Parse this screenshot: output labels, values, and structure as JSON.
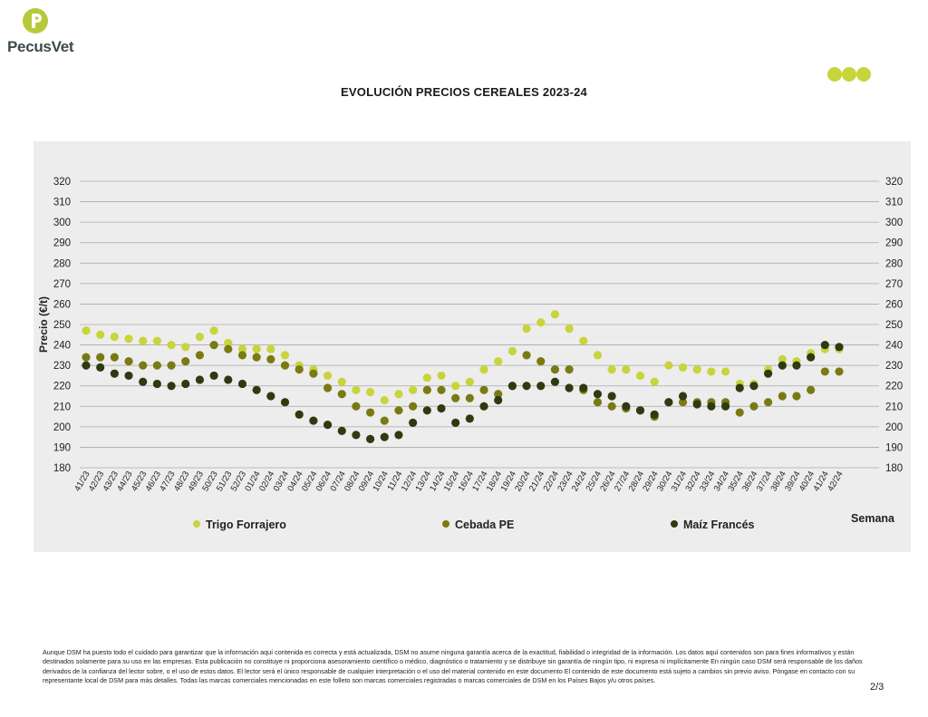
{
  "brand": {
    "name": "PecusVet",
    "logo_icon": "pecusvet-logo-icon"
  },
  "header": {
    "title": "EVOLUCIÓN PRECIOS CEREALES 2023-24"
  },
  "chart_data": {
    "type": "scatter",
    "title": "EVOLUCIÓN PRECIOS CEREALES 2023-24",
    "ylabel": "Precio (€/t)",
    "xlabel": "Semana",
    "ylim": [
      180,
      320
    ],
    "yticks": [
      180,
      190,
      200,
      210,
      220,
      230,
      240,
      250,
      260,
      270,
      280,
      290,
      300,
      310,
      320
    ],
    "grid": true,
    "legend": "bottom",
    "categories": [
      "41/23",
      "42/23",
      "43/23",
      "44/23",
      "45/23",
      "46/23",
      "47/23",
      "48/23",
      "49/23",
      "50/23",
      "51/23",
      "52/23",
      "01/24",
      "02/24",
      "03/24",
      "04/24",
      "05/24",
      "06/24",
      "07/24",
      "08/24",
      "09/24",
      "10/24",
      "11/24",
      "12/24",
      "13/24",
      "14/24",
      "15/24",
      "16/24",
      "17/24",
      "18/24",
      "19/24",
      "20/24",
      "21/24",
      "22/24",
      "23/24",
      "24/24",
      "25/24",
      "26/24",
      "27/24",
      "28/24",
      "29/24",
      "30/24",
      "31/24",
      "32/24",
      "33/24",
      "34/24",
      "35/24",
      "36/24",
      "37/24",
      "38/24",
      "39/24",
      "40/24",
      "41/24",
      "42/24"
    ],
    "series": [
      {
        "name": "Trigo Forrajero",
        "color": "#c8d43c",
        "values": [
          247,
          245,
          244,
          243,
          242,
          242,
          240,
          239,
          244,
          247,
          241,
          238,
          238,
          238,
          235,
          230,
          228,
          225,
          222,
          218,
          217,
          213,
          216,
          218,
          224,
          225,
          220,
          222,
          228,
          232,
          237,
          248,
          251,
          255,
          248,
          242,
          235,
          228,
          228,
          225,
          222,
          230,
          229,
          228,
          227,
          227,
          221,
          221,
          228,
          233,
          232,
          236,
          238,
          238
        ]
      },
      {
        "name": "Cebada PE",
        "color": "#7a7a14",
        "values": [
          234,
          234,
          234,
          232,
          230,
          230,
          230,
          232,
          235,
          240,
          238,
          235,
          234,
          233,
          230,
          228,
          226,
          219,
          216,
          210,
          207,
          203,
          208,
          210,
          218,
          218,
          214,
          214,
          218,
          216,
          220,
          235,
          232,
          228,
          228,
          218,
          212,
          210,
          209,
          208,
          205,
          212,
          212,
          212,
          212,
          212,
          207,
          210,
          212,
          215,
          215,
          218,
          227,
          227
        ]
      },
      {
        "name": "Maíz Francés",
        "color": "#2e3b10",
        "values": [
          230,
          229,
          226,
          225,
          222,
          221,
          220,
          221,
          223,
          225,
          223,
          221,
          218,
          215,
          212,
          206,
          203,
          201,
          198,
          196,
          194,
          195,
          196,
          202,
          208,
          209,
          202,
          204,
          210,
          213,
          220,
          220,
          220,
          222,
          219,
          219,
          216,
          215,
          210,
          208,
          206,
          212,
          215,
          211,
          210,
          210,
          219,
          220,
          226,
          230,
          230,
          234,
          240,
          239
        ]
      }
    ]
  },
  "footer": {
    "disclaimer": "Aunque DSM ha puesto todo el cuidado para garantizar que la información aquí contenida es correcta y está actualizada, DSM no asume ninguna garantía acerca de la exactitud, fiabilidad o integridad de la información. Los datos aquí contenidos son para fines informativos y están destinados solamente para su uso en las empresas. Esta publicación no constituye ni proporciona asesoramiento científico o médico, diagnóstico o tratamiento y se distribuye sin garantía de ningún tipo, ni expresa ni implícitamente En ningún caso DSM será responsable de los daños derivados de la confianza del lector sobre, o el uso de estos datos. El lector será el único responsable de cualquier interpretación o el uso del material contenido en este documento El contenido de este documento está sujeto a cambios sin previo aviso. Póngase en contacto con su representante local de DSM para más detalles. Todas las marcas comerciales mencionadas en este folleto son marcas comerciales registradas o marcas comerciales de DSM en los Países Bajos y/u otros países.",
    "page": "2/3"
  }
}
